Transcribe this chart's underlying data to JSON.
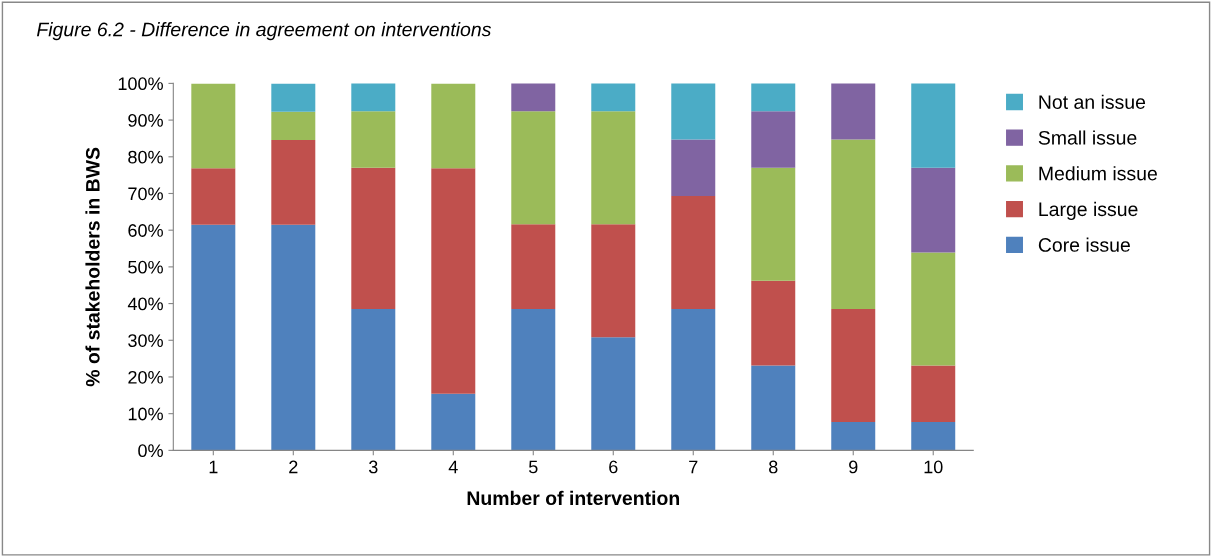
{
  "chart_data": {
    "type": "bar",
    "stacked": true,
    "title": "Figure 6.2 - Difference in agreement on interventions",
    "xlabel": "Number of intervention",
    "ylabel": "% of stakeholders in BWS",
    "categories": [
      "1",
      "2",
      "3",
      "4",
      "5",
      "6",
      "7",
      "8",
      "9",
      "10"
    ],
    "series": [
      {
        "name": "Core issue",
        "color": "#4f81bd",
        "values": [
          61.5,
          61.5,
          38.5,
          15.4,
          38.5,
          30.8,
          38.5,
          23.1,
          7.7,
          7.7
        ]
      },
      {
        "name": "Large issue",
        "color": "#c0504d",
        "values": [
          15.4,
          23.1,
          38.5,
          61.5,
          23.1,
          30.8,
          30.8,
          23.1,
          30.8,
          15.4
        ]
      },
      {
        "name": "Medium issue",
        "color": "#9bbb59",
        "values": [
          23.1,
          7.7,
          15.4,
          23.1,
          30.8,
          30.8,
          0,
          30.8,
          46.2,
          30.8
        ]
      },
      {
        "name": "Small issue",
        "color": "#8064a2",
        "values": [
          0,
          0,
          0,
          0,
          7.7,
          0,
          15.4,
          15.4,
          15.4,
          23.1
        ]
      },
      {
        "name": "Not an issue",
        "color": "#4bacc6",
        "values": [
          0,
          7.7,
          7.7,
          0,
          0,
          7.7,
          15.4,
          7.7,
          0,
          23.1
        ]
      }
    ],
    "ylim": [
      0,
      100
    ],
    "yticks": [
      {
        "value": 0,
        "label": "0%"
      },
      {
        "value": 10,
        "label": "10%"
      },
      {
        "value": 20,
        "label": "20%"
      },
      {
        "value": 30,
        "label": "30%"
      },
      {
        "value": 40,
        "label": "40%"
      },
      {
        "value": 50,
        "label": "50%"
      },
      {
        "value": 60,
        "label": "60%"
      },
      {
        "value": 70,
        "label": "70%"
      },
      {
        "value": 80,
        "label": "80%"
      },
      {
        "value": 90,
        "label": "90%"
      },
      {
        "value": 100,
        "label": "100%"
      }
    ],
    "grid": false,
    "legend": "right"
  }
}
